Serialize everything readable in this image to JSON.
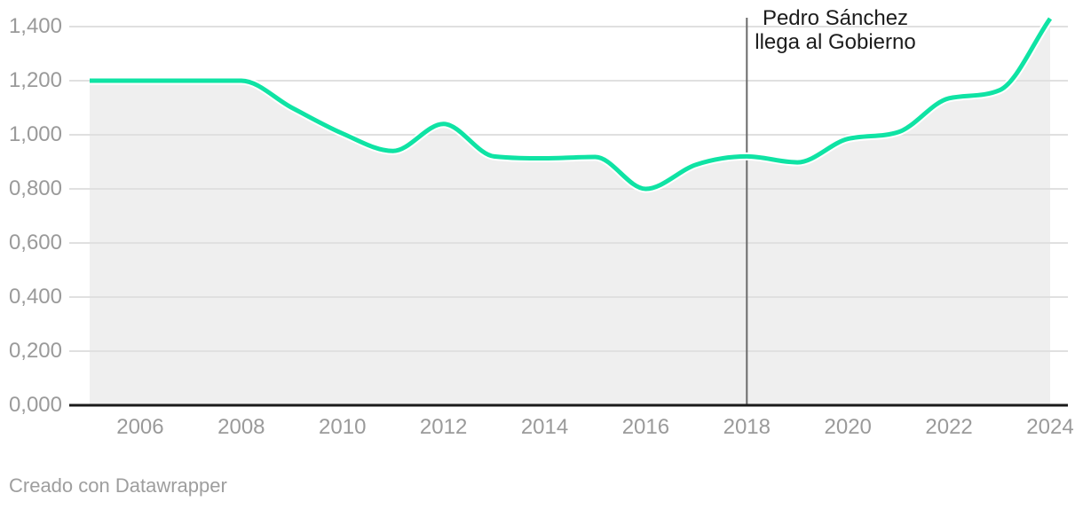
{
  "footer": {
    "credit": "Creado con Datawrapper"
  },
  "chart_data": {
    "type": "area",
    "title": "",
    "x": [
      2005,
      2006,
      2007,
      2008,
      2009,
      2010,
      2011,
      2012,
      2013,
      2014,
      2015,
      2016,
      2017,
      2018,
      2019,
      2020,
      2021,
      2022,
      2023,
      2024
    ],
    "values": [
      1200,
      1200,
      1200,
      1200,
      1100,
      1005,
      940,
      1040,
      920,
      913,
      918,
      800,
      890,
      920,
      898,
      985,
      1010,
      1135,
      1165,
      1430
    ],
    "xlim": [
      2005,
      2024
    ],
    "ylim": [
      0,
      1400
    ],
    "grid": true,
    "legend": "none",
    "y_ticks": [
      {
        "value": 1400,
        "label": "1,400"
      },
      {
        "value": 1200,
        "label": "1,200"
      },
      {
        "value": 1000,
        "label": "1,000"
      },
      {
        "value": 800,
        "label": "0,800"
      },
      {
        "value": 600,
        "label": "0,600"
      },
      {
        "value": 400,
        "label": "0,400"
      },
      {
        "value": 200,
        "label": "0,200"
      },
      {
        "value": 0,
        "label": "0,000"
      }
    ],
    "x_ticks": [
      {
        "value": 2006,
        "label": "2006"
      },
      {
        "value": 2008,
        "label": "2008"
      },
      {
        "value": 2010,
        "label": "2010"
      },
      {
        "value": 2012,
        "label": "2012"
      },
      {
        "value": 2014,
        "label": "2014"
      },
      {
        "value": 2016,
        "label": "2016"
      },
      {
        "value": 2018,
        "label": "2018"
      },
      {
        "value": 2020,
        "label": "2020"
      },
      {
        "value": 2022,
        "label": "2022"
      },
      {
        "value": 2024,
        "label": "2024"
      }
    ],
    "annotation": {
      "x": 2018,
      "text_line1": "Pedro Sánchez",
      "text_line2": "llega al Gobierno"
    },
    "colors": {
      "line": "#0fe3a4",
      "halo": "#ffffff",
      "area": "#efefef",
      "grid": "#e0e0e0",
      "axis": "#1a1a1a",
      "tick_text": "#9a9a9a",
      "annotation_line": "#6b6b6b",
      "annotation_text": "#1c1c1c",
      "credit_text": "#9e9e9e"
    }
  }
}
